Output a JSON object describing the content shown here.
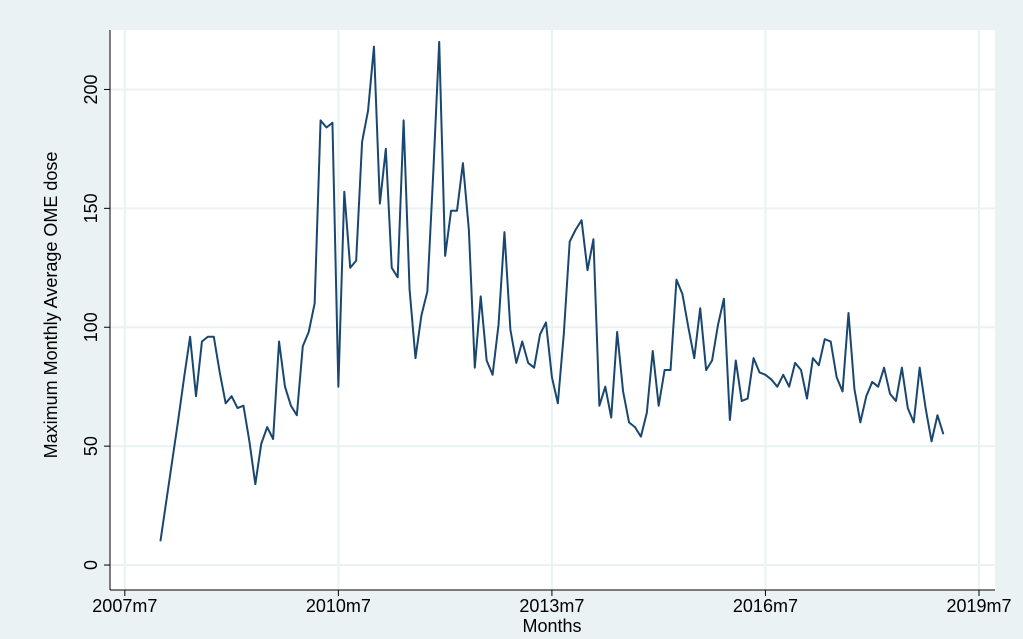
{
  "chart_data": {
    "type": "line",
    "ylabel": "Maximum Monthly Average OME dose",
    "xlabel": "Months",
    "x": [
      576,
      577,
      578,
      579,
      580,
      581,
      582,
      583,
      584,
      585,
      586,
      587,
      588,
      589,
      590,
      591,
      592,
      593,
      594,
      595,
      596,
      597,
      598,
      599,
      600,
      601,
      602,
      603,
      604,
      605,
      606,
      607,
      608,
      609,
      610,
      611,
      612,
      613,
      614,
      615,
      616,
      617,
      618,
      619,
      620,
      621,
      622,
      623,
      624,
      625,
      626,
      627,
      628,
      629,
      630,
      631,
      632,
      633,
      634,
      635,
      636,
      637,
      638,
      639,
      640,
      641,
      642,
      643,
      644,
      645,
      646,
      647,
      648,
      649,
      650,
      651,
      652,
      653,
      654,
      655,
      656,
      657,
      658,
      659,
      660,
      661,
      662,
      663,
      664,
      665,
      666,
      667,
      668,
      669,
      670,
      671,
      672,
      673,
      674,
      675,
      676,
      677,
      678,
      679,
      680,
      681,
      682,
      683,
      684,
      685,
      686,
      687,
      688,
      689,
      690,
      691,
      692,
      693,
      694,
      695,
      696,
      697,
      698,
      699,
      700,
      701,
      702,
      703,
      704,
      705,
      706,
      707,
      708
    ],
    "series": [
      {
        "color": "#1a476f",
        "values": [
          10,
          27,
          44,
          61,
          79,
          96,
          71,
          94,
          96,
          96,
          81,
          68,
          71,
          66,
          67,
          52,
          34,
          51,
          58,
          53,
          94,
          75,
          67,
          63,
          92,
          98,
          110,
          187,
          184,
          186,
          75,
          157,
          125,
          128,
          178,
          191,
          218,
          152,
          175,
          125,
          121,
          187,
          116,
          87,
          105,
          115,
          165,
          220,
          130,
          149,
          149,
          169,
          141,
          83,
          113,
          86,
          80,
          101,
          140,
          99,
          85,
          94,
          85,
          83,
          97,
          102,
          79,
          68,
          97,
          136,
          141,
          145,
          124,
          137,
          67,
          75,
          62,
          98,
          73,
          60,
          58,
          54,
          64,
          90,
          67,
          82,
          82,
          120,
          114,
          100,
          87,
          108,
          82,
          86,
          101,
          112,
          61,
          86,
          69,
          70,
          87,
          81,
          80,
          78,
          75,
          80,
          75,
          85,
          82,
          70,
          87,
          84,
          95,
          94,
          79,
          73,
          106,
          74,
          60,
          71,
          77,
          75,
          83,
          72,
          69,
          83,
          66,
          60,
          83,
          66,
          52,
          63,
          55
        ]
      }
    ],
    "xlim": [
      567.5,
      716.7
    ],
    "xticks": [
      {
        "value": 570,
        "label": "2007m7"
      },
      {
        "value": 606,
        "label": "2010m7"
      },
      {
        "value": 642,
        "label": "2013m7"
      },
      {
        "value": 678,
        "label": "2016m7"
      },
      {
        "value": 714,
        "label": "2019m7"
      }
    ],
    "ylim": [
      -10.5,
      225
    ],
    "yticks": [
      0,
      50,
      100,
      150,
      200
    ],
    "grid": true
  }
}
